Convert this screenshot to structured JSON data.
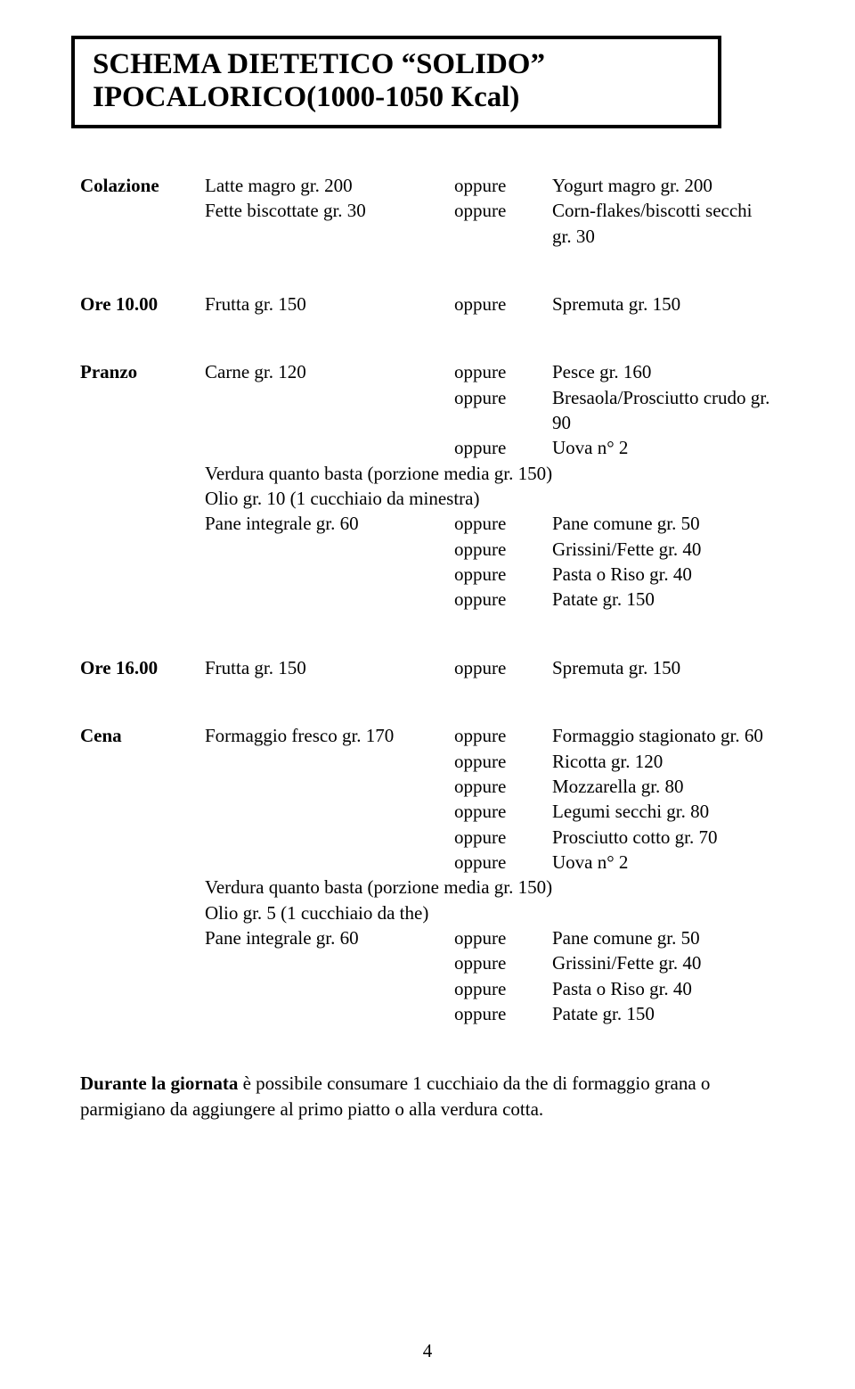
{
  "title": {
    "line1": "SCHEMA DIETETICO “SOLIDO”",
    "line2": "IPOCALORICO(1000-1050 Kcal)"
  },
  "colazione": {
    "label": "Colazione",
    "item1": "Latte magro gr. 200",
    "opp": "oppure",
    "alt1": "Yogurt magro gr. 200",
    "item2": "Fette biscottate gr. 30",
    "alt2": "Corn-flakes/biscotti secchi gr. 30"
  },
  "ore10": {
    "label": "Ore 10.00",
    "item": "Frutta gr. 150",
    "opp": "oppure",
    "alt": "Spremuta gr. 150"
  },
  "pranzo": {
    "label": "Pranzo",
    "item1": "Carne gr. 120",
    "opp": "oppure",
    "alt1": "Pesce gr. 160",
    "alt2": "Bresaola/Prosciutto crudo gr. 90",
    "alt3": "Uova n° 2",
    "verdura": "Verdura quanto basta (porzione media gr. 150)",
    "olio": "Olio gr. 10 (1 cucchiaio da minestra)",
    "pane": "Pane integrale gr. 60",
    "panealt1": "Pane comune gr. 50",
    "panealt2": "Grissini/Fette gr. 40",
    "panealt3": "Pasta o Riso gr. 40",
    "panealt4": "Patate gr. 150"
  },
  "ore16": {
    "label": "Ore 16.00",
    "item": "Frutta gr. 150",
    "opp": "oppure",
    "alt": "Spremuta gr. 150"
  },
  "cena": {
    "label": "Cena",
    "item1": "Formaggio fresco gr. 170",
    "opp": "oppure",
    "alt1": "Formaggio stagionato gr. 60",
    "alt2": "Ricotta gr. 120",
    "alt3": "Mozzarella gr. 80",
    "alt4": "Legumi secchi gr. 80",
    "alt5": "Prosciutto cotto gr. 70",
    "alt6": "Uova n° 2",
    "verdura": "Verdura quanto basta (porzione media gr. 150)",
    "olio": "Olio gr. 5 (1 cucchiaio da the)",
    "pane": "Pane integrale gr. 60",
    "panealt1": "Pane comune gr. 50",
    "panealt2": "Grissini/Fette gr. 40",
    "panealt3": "Pasta o Riso gr. 40",
    "panealt4": "Patate gr. 150"
  },
  "footer": {
    "label": "Durante la giornata",
    "text": " è possibile consumare 1 cucchiaio da the di formaggio grana o parmigiano da aggiungere al primo piatto o alla verdura cotta."
  },
  "pageNumber": "4"
}
